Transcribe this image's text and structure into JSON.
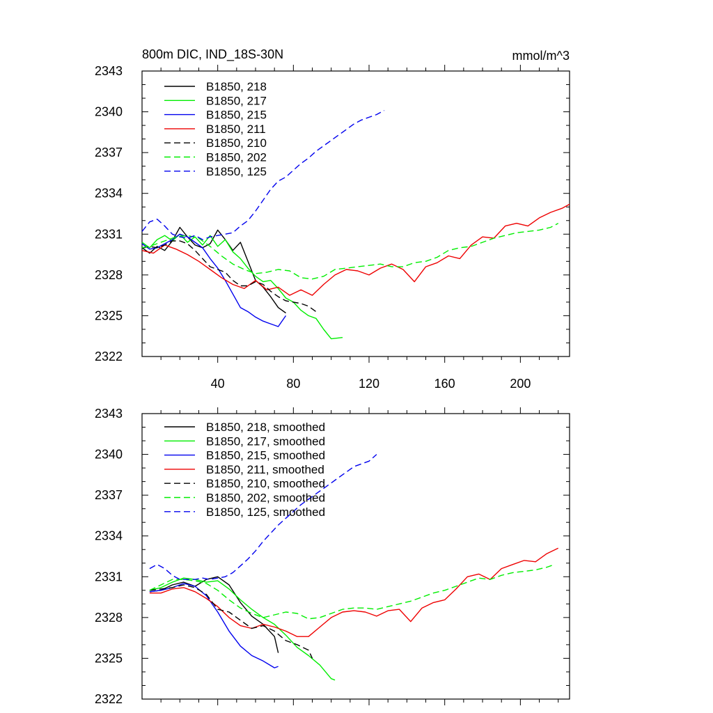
{
  "chart_data": [
    {
      "type": "line",
      "title": "800m DIC, IND_18S-30N",
      "units": "mmol/m^3",
      "xlim": [
        0,
        226
      ],
      "ylim": [
        2322,
        2343
      ],
      "yticks": [
        2322,
        2325,
        2328,
        2331,
        2334,
        2337,
        2340,
        2343
      ],
      "xticks": [
        40,
        80,
        120,
        160,
        200
      ],
      "legend_position": "top-left",
      "series": [
        {
          "name": "B1850, 218",
          "color": "#000000",
          "dashed": false,
          "x": [
            0,
            4,
            8,
            12,
            16,
            20,
            24,
            28,
            32,
            36,
            40,
            44,
            48,
            52,
            56,
            60,
            64,
            68,
            72,
            76
          ],
          "y": [
            2330.0,
            2329.6,
            2330.1,
            2329.8,
            2330.5,
            2331.5,
            2330.8,
            2330.2,
            2330.0,
            2330.3,
            2331.3,
            2330.6,
            2329.8,
            2330.4,
            2329.0,
            2327.6,
            2327.1,
            2326.4,
            2325.6,
            2325.2
          ]
        },
        {
          "name": "B1850, 217",
          "color": "#00ee00",
          "dashed": false,
          "x": [
            0,
            4,
            8,
            12,
            16,
            20,
            24,
            28,
            32,
            36,
            40,
            44,
            48,
            52,
            56,
            60,
            64,
            68,
            72,
            76,
            80,
            84,
            88,
            92,
            96,
            100,
            106
          ],
          "y": [
            2330.4,
            2330.0,
            2330.6,
            2330.9,
            2330.5,
            2331.0,
            2330.4,
            2330.8,
            2330.2,
            2330.9,
            2330.1,
            2330.6,
            2329.7,
            2329.2,
            2328.5,
            2327.9,
            2327.5,
            2327.6,
            2327.0,
            2326.3,
            2326.0,
            2325.4,
            2325.0,
            2324.8,
            2324.0,
            2323.3,
            2323.4
          ]
        },
        {
          "name": "B1850, 215",
          "color": "#0000ee",
          "dashed": false,
          "x": [
            0,
            4,
            8,
            12,
            16,
            20,
            24,
            28,
            32,
            36,
            40,
            44,
            48,
            52,
            56,
            60,
            64,
            68,
            72,
            76
          ],
          "y": [
            2330.3,
            2329.9,
            2330.0,
            2330.3,
            2330.6,
            2331.0,
            2330.8,
            2330.4,
            2330.0,
            2329.2,
            2328.5,
            2327.6,
            2326.6,
            2325.6,
            2325.3,
            2324.9,
            2324.6,
            2324.4,
            2324.2,
            2325.0
          ]
        },
        {
          "name": "B1850, 211",
          "color": "#ee0000",
          "dashed": false,
          "x": [
            0,
            6,
            12,
            18,
            24,
            30,
            36,
            42,
            48,
            54,
            60,
            66,
            72,
            78,
            84,
            90,
            96,
            102,
            108,
            114,
            120,
            126,
            132,
            138,
            144,
            150,
            156,
            162,
            168,
            174,
            180,
            186,
            192,
            198,
            204,
            210,
            216,
            222,
            226
          ],
          "y": [
            2329.8,
            2329.6,
            2330.2,
            2329.9,
            2329.5,
            2329.0,
            2328.4,
            2327.8,
            2327.3,
            2327.0,
            2327.6,
            2326.9,
            2327.1,
            2326.5,
            2326.9,
            2326.5,
            2327.3,
            2328.0,
            2328.4,
            2328.3,
            2328.0,
            2328.5,
            2328.8,
            2328.4,
            2327.5,
            2328.6,
            2328.9,
            2329.4,
            2329.2,
            2330.2,
            2330.8,
            2330.7,
            2331.6,
            2331.8,
            2331.6,
            2332.2,
            2332.6,
            2332.9,
            2333.2
          ]
        },
        {
          "name": "B1850, 210",
          "color": "#000000",
          "dashed": true,
          "x": [
            0,
            4,
            8,
            12,
            16,
            20,
            24,
            28,
            32,
            36,
            40,
            44,
            48,
            52,
            56,
            60,
            64,
            68,
            72,
            76,
            80,
            84,
            88,
            92
          ],
          "y": [
            2330.0,
            2330.1,
            2330.0,
            2330.2,
            2330.5,
            2330.5,
            2330.3,
            2329.8,
            2329.2,
            2328.6,
            2328.4,
            2328.2,
            2327.6,
            2327.2,
            2327.2,
            2327.5,
            2327.3,
            2326.8,
            2326.4,
            2326.1,
            2326.0,
            2325.9,
            2325.7,
            2325.3
          ]
        },
        {
          "name": "B1850, 202",
          "color": "#00ee00",
          "dashed": true,
          "x": [
            0,
            6,
            12,
            18,
            24,
            30,
            36,
            42,
            48,
            54,
            60,
            66,
            72,
            78,
            84,
            90,
            96,
            102,
            108,
            114,
            120,
            126,
            132,
            138,
            144,
            150,
            156,
            162,
            168,
            174,
            180,
            186,
            192,
            198,
            204,
            210,
            216,
            220
          ],
          "y": [
            2330.0,
            2330.2,
            2330.5,
            2330.8,
            2330.9,
            2330.7,
            2330.1,
            2329.4,
            2328.8,
            2328.4,
            2328.1,
            2328.2,
            2328.4,
            2328.3,
            2327.8,
            2327.7,
            2327.9,
            2328.4,
            2328.5,
            2328.6,
            2328.7,
            2328.8,
            2328.6,
            2328.6,
            2328.9,
            2329.0,
            2329.3,
            2329.8,
            2330.0,
            2330.1,
            2330.4,
            2330.7,
            2330.9,
            2331.1,
            2331.2,
            2331.3,
            2331.5,
            2331.8
          ]
        },
        {
          "name": "B1850, 125",
          "color": "#0000ee",
          "dashed": true,
          "x": [
            0,
            4,
            8,
            12,
            16,
            20,
            24,
            28,
            32,
            36,
            40,
            44,
            48,
            52,
            56,
            60,
            64,
            68,
            72,
            76,
            80,
            84,
            88,
            92,
            96,
            100,
            104,
            108,
            112,
            116,
            120,
            124,
            128
          ],
          "y": [
            2331.2,
            2331.9,
            2332.1,
            2331.6,
            2331.0,
            2330.8,
            2330.7,
            2330.9,
            2330.6,
            2330.8,
            2330.9,
            2331.0,
            2331.1,
            2331.6,
            2332.0,
            2332.7,
            2333.5,
            2334.3,
            2334.9,
            2335.2,
            2335.7,
            2336.2,
            2336.6,
            2337.1,
            2337.5,
            2337.9,
            2338.3,
            2338.7,
            2339.1,
            2339.4,
            2339.6,
            2339.8,
            2340.1
          ]
        }
      ]
    },
    {
      "type": "line",
      "title": "",
      "units": "",
      "xlim": [
        0,
        226
      ],
      "ylim": [
        2322,
        2343
      ],
      "yticks": [
        2322,
        2325,
        2328,
        2331,
        2334,
        2337,
        2340,
        2343
      ],
      "xticks": [],
      "legend_position": "top-left",
      "series": [
        {
          "name": "B1850, 218, smoothed",
          "color": "#000000",
          "dashed": false,
          "x": [
            4,
            10,
            16,
            22,
            28,
            34,
            40,
            46,
            52,
            58,
            64,
            70,
            72
          ],
          "y": [
            2329.9,
            2330.0,
            2330.4,
            2330.6,
            2330.3,
            2330.8,
            2331.0,
            2330.4,
            2329.1,
            2328.1,
            2327.5,
            2326.6,
            2325.4
          ]
        },
        {
          "name": "B1850, 217, smoothed",
          "color": "#00ee00",
          "dashed": false,
          "x": [
            4,
            10,
            16,
            22,
            28,
            34,
            40,
            46,
            52,
            58,
            64,
            70,
            76,
            82,
            88,
            94,
            100,
            102
          ],
          "y": [
            2330.0,
            2330.2,
            2330.6,
            2330.9,
            2330.8,
            2330.6,
            2330.7,
            2330.1,
            2329.3,
            2328.6,
            2328.0,
            2327.5,
            2326.7,
            2325.8,
            2325.2,
            2324.5,
            2323.5,
            2323.4
          ]
        },
        {
          "name": "B1850, 215, smoothed",
          "color": "#0000ee",
          "dashed": false,
          "x": [
            4,
            10,
            16,
            22,
            28,
            34,
            40,
            46,
            52,
            58,
            64,
            70,
            72
          ],
          "y": [
            2329.9,
            2330.0,
            2330.2,
            2330.5,
            2330.3,
            2329.6,
            2328.4,
            2327.0,
            2325.9,
            2325.2,
            2324.8,
            2324.3,
            2324.4
          ]
        },
        {
          "name": "B1850, 211, smoothed",
          "color": "#ee0000",
          "dashed": false,
          "x": [
            4,
            10,
            16,
            22,
            28,
            34,
            40,
            46,
            52,
            58,
            64,
            70,
            76,
            82,
            88,
            94,
            100,
            106,
            112,
            118,
            124,
            130,
            136,
            142,
            148,
            154,
            160,
            166,
            172,
            178,
            184,
            190,
            196,
            202,
            208,
            214,
            220
          ],
          "y": [
            2329.8,
            2329.8,
            2330.1,
            2330.2,
            2329.9,
            2329.4,
            2328.8,
            2328.0,
            2327.4,
            2327.2,
            2327.5,
            2327.3,
            2327.0,
            2326.6,
            2326.6,
            2327.3,
            2328.0,
            2328.4,
            2328.5,
            2328.4,
            2328.1,
            2328.5,
            2328.6,
            2327.7,
            2328.7,
            2329.1,
            2329.3,
            2330.1,
            2331.0,
            2331.2,
            2330.8,
            2331.6,
            2331.9,
            2332.2,
            2332.1,
            2332.7,
            2333.1
          ]
        },
        {
          "name": "B1850, 210, smoothed",
          "color": "#000000",
          "dashed": true,
          "x": [
            4,
            10,
            16,
            22,
            28,
            34,
            40,
            46,
            52,
            58,
            64,
            70,
            76,
            82,
            88,
            90
          ],
          "y": [
            2330.0,
            2330.1,
            2330.2,
            2330.4,
            2330.2,
            2329.7,
            2328.6,
            2328.4,
            2327.8,
            2327.2,
            2327.4,
            2327.0,
            2326.3,
            2326.0,
            2325.6,
            2325.0
          ]
        },
        {
          "name": "B1850, 202, smoothed",
          "color": "#00ee00",
          "dashed": true,
          "x": [
            4,
            10,
            16,
            22,
            28,
            34,
            40,
            46,
            52,
            58,
            64,
            70,
            76,
            82,
            88,
            94,
            100,
            106,
            112,
            118,
            124,
            130,
            136,
            142,
            148,
            154,
            160,
            166,
            172,
            178,
            184,
            190,
            196,
            202,
            208,
            214,
            218
          ],
          "y": [
            2330.0,
            2330.4,
            2330.8,
            2330.8,
            2330.7,
            2330.5,
            2330.0,
            2329.3,
            2328.7,
            2328.3,
            2328.0,
            2328.2,
            2328.4,
            2328.3,
            2327.9,
            2328.0,
            2328.3,
            2328.6,
            2328.7,
            2328.7,
            2328.6,
            2328.8,
            2329.0,
            2329.2,
            2329.5,
            2329.8,
            2330.0,
            2330.3,
            2330.6,
            2330.9,
            2330.8,
            2331.1,
            2331.3,
            2331.4,
            2331.5,
            2331.7,
            2331.9
          ]
        },
        {
          "name": "B1850, 125, smoothed",
          "color": "#0000ee",
          "dashed": true,
          "x": [
            4,
            8,
            12,
            16,
            20,
            24,
            28,
            32,
            36,
            40,
            44,
            48,
            52,
            56,
            60,
            64,
            68,
            72,
            76,
            80,
            84,
            88,
            92,
            96,
            100,
            104,
            108,
            112,
            116,
            120,
            124
          ],
          "y": [
            2331.6,
            2331.9,
            2331.6,
            2331.1,
            2330.8,
            2330.8,
            2330.8,
            2330.9,
            2330.8,
            2330.9,
            2331.0,
            2331.3,
            2331.8,
            2332.3,
            2332.9,
            2333.6,
            2334.2,
            2334.8,
            2335.3,
            2335.8,
            2336.3,
            2336.7,
            2337.1,
            2337.5,
            2337.9,
            2338.3,
            2338.7,
            2339.1,
            2339.3,
            2339.5,
            2340.0
          ]
        }
      ]
    }
  ]
}
